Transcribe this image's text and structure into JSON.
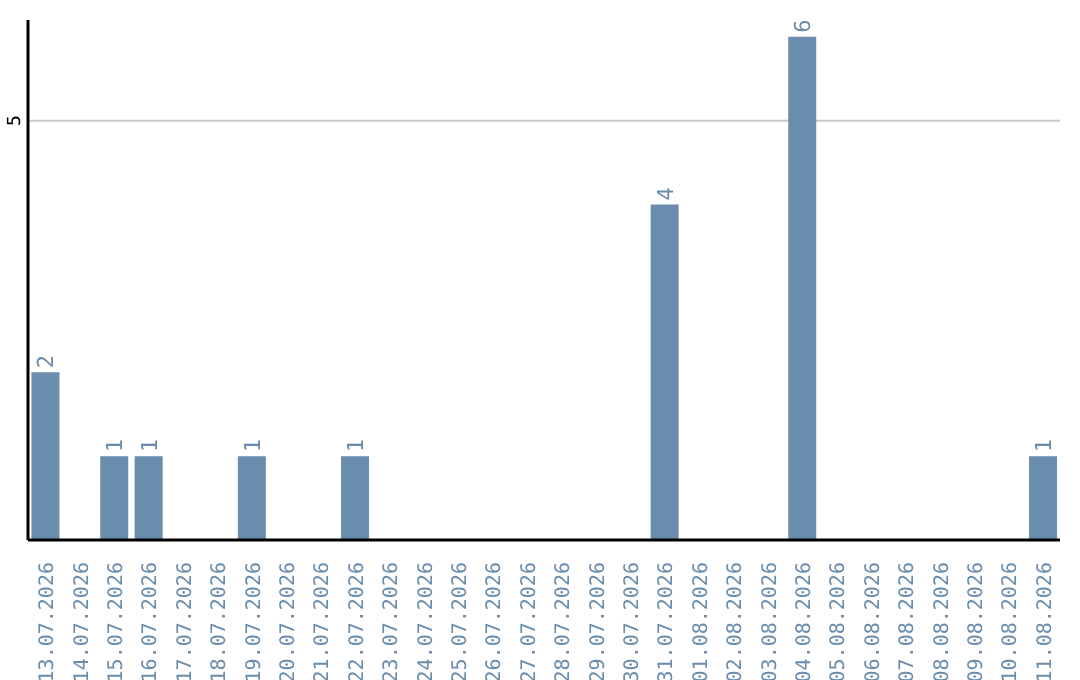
{
  "chart_data": {
    "type": "bar",
    "categories": [
      "13.07.2026",
      "14.07.2026",
      "15.07.2026",
      "16.07.2026",
      "17.07.2026",
      "18.07.2026",
      "19.07.2026",
      "20.07.2026",
      "21.07.2026",
      "22.07.2026",
      "23.07.2026",
      "24.07.2026",
      "25.07.2026",
      "26.07.2026",
      "27.07.2026",
      "28.07.2026",
      "29.07.2026",
      "30.07.2026",
      "31.07.2026",
      "01.08.2026",
      "02.08.2026",
      "03.08.2026",
      "04.08.2026",
      "05.08.2026",
      "06.08.2026",
      "07.08.2026",
      "08.08.2026",
      "09.08.2026",
      "10.08.2026",
      "11.08.2026"
    ],
    "values": [
      2,
      0,
      1,
      1,
      0,
      0,
      1,
      0,
      0,
      1,
      0,
      0,
      0,
      0,
      0,
      0,
      0,
      0,
      4,
      0,
      0,
      0,
      6,
      0,
      0,
      0,
      0,
      0,
      0,
      1
    ],
    "value_labels": [
      "2",
      null,
      "1",
      "1",
      null,
      null,
      "1",
      null,
      null,
      "1",
      null,
      null,
      null,
      null,
      null,
      null,
      null,
      null,
      "4",
      null,
      null,
      null,
      "6",
      null,
      null,
      null,
      null,
      null,
      null,
      "1"
    ],
    "color": "#6a8cad",
    "ylim": [
      0,
      6.2
    ],
    "yticks": [
      5
    ],
    "grid": "y"
  }
}
